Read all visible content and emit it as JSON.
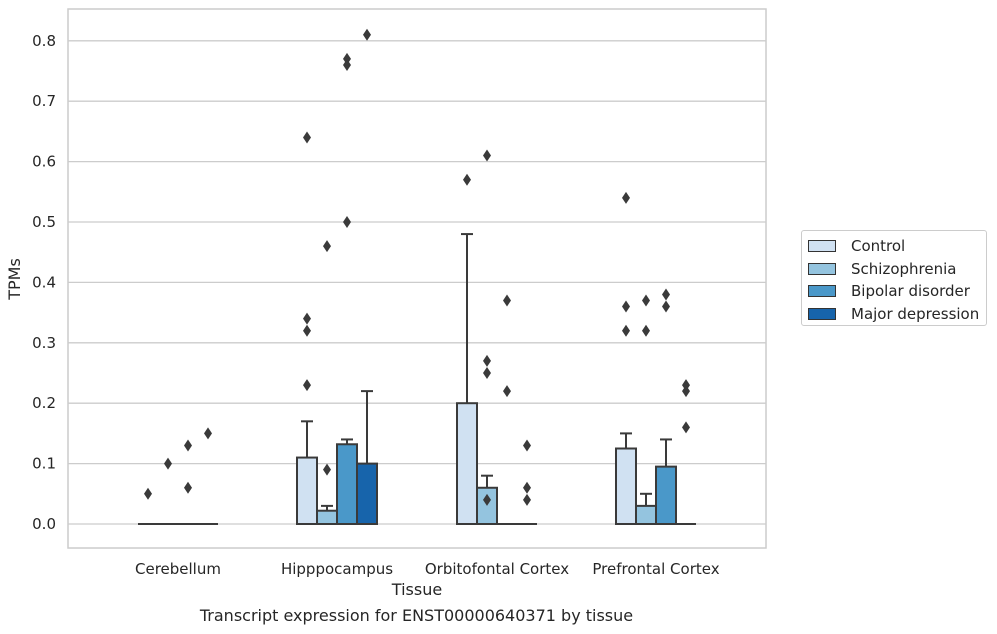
{
  "chart_data": {
    "type": "bar",
    "xlabel": "Tissue",
    "ylabel": "TPMs",
    "caption": "Transcript expression for ENST00000640371 by tissue",
    "categories": [
      "Cerebellum",
      "Hipppocampus",
      "Orbitofontal Cortex",
      "Prefrontal Cortex"
    ],
    "ylim": [
      -0.04,
      0.85
    ],
    "yticks": [
      "0.0",
      "0.1",
      "0.2",
      "0.3",
      "0.4",
      "0.5",
      "0.6",
      "0.7",
      "0.8"
    ],
    "grid": true,
    "legend_position": "right",
    "series": [
      {
        "name": "Control",
        "color": "#d0e1f2",
        "values": [
          0.0,
          0.11,
          0.2,
          0.125
        ],
        "whisker_high": [
          0.0,
          0.17,
          0.48,
          0.15
        ],
        "outliers": [
          [
            0.05
          ],
          [
            0.64,
            0.34,
            0.32,
            0.23
          ],
          [
            0.57
          ],
          [
            0.54,
            0.36,
            0.32
          ]
        ]
      },
      {
        "name": "Schizophrenia",
        "color": "#94c4df",
        "values": [
          0.0,
          0.022,
          0.06,
          0.03
        ],
        "whisker_high": [
          0.0,
          0.03,
          0.08,
          0.05
        ],
        "outliers": [
          [
            0.1
          ],
          [
            0.46,
            0.09
          ],
          [
            0.61,
            0.27,
            0.25,
            0.04
          ],
          [
            0.37,
            0.32
          ]
        ]
      },
      {
        "name": "Bipolar disorder",
        "color": "#4a98c9",
        "values": [
          0.0,
          0.132,
          0.0,
          0.095
        ],
        "whisker_high": [
          0.0,
          0.14,
          0.0,
          0.14
        ],
        "outliers": [
          [
            0.13,
            0.06
          ],
          [
            0.77,
            0.76,
            0.5
          ],
          [
            0.37,
            0.22
          ],
          [
            0.38,
            0.36
          ]
        ]
      },
      {
        "name": "Major depression",
        "color": "#1764ab",
        "values": [
          0.0,
          0.1,
          0.0,
          0.0
        ],
        "whisker_high": [
          0.0,
          0.22,
          0.0,
          0.0
        ],
        "outliers": [
          [
            0.15
          ],
          [
            0.81
          ],
          [
            0.13,
            0.06,
            0.04
          ],
          [
            0.23,
            0.22,
            0.16
          ]
        ]
      }
    ]
  }
}
